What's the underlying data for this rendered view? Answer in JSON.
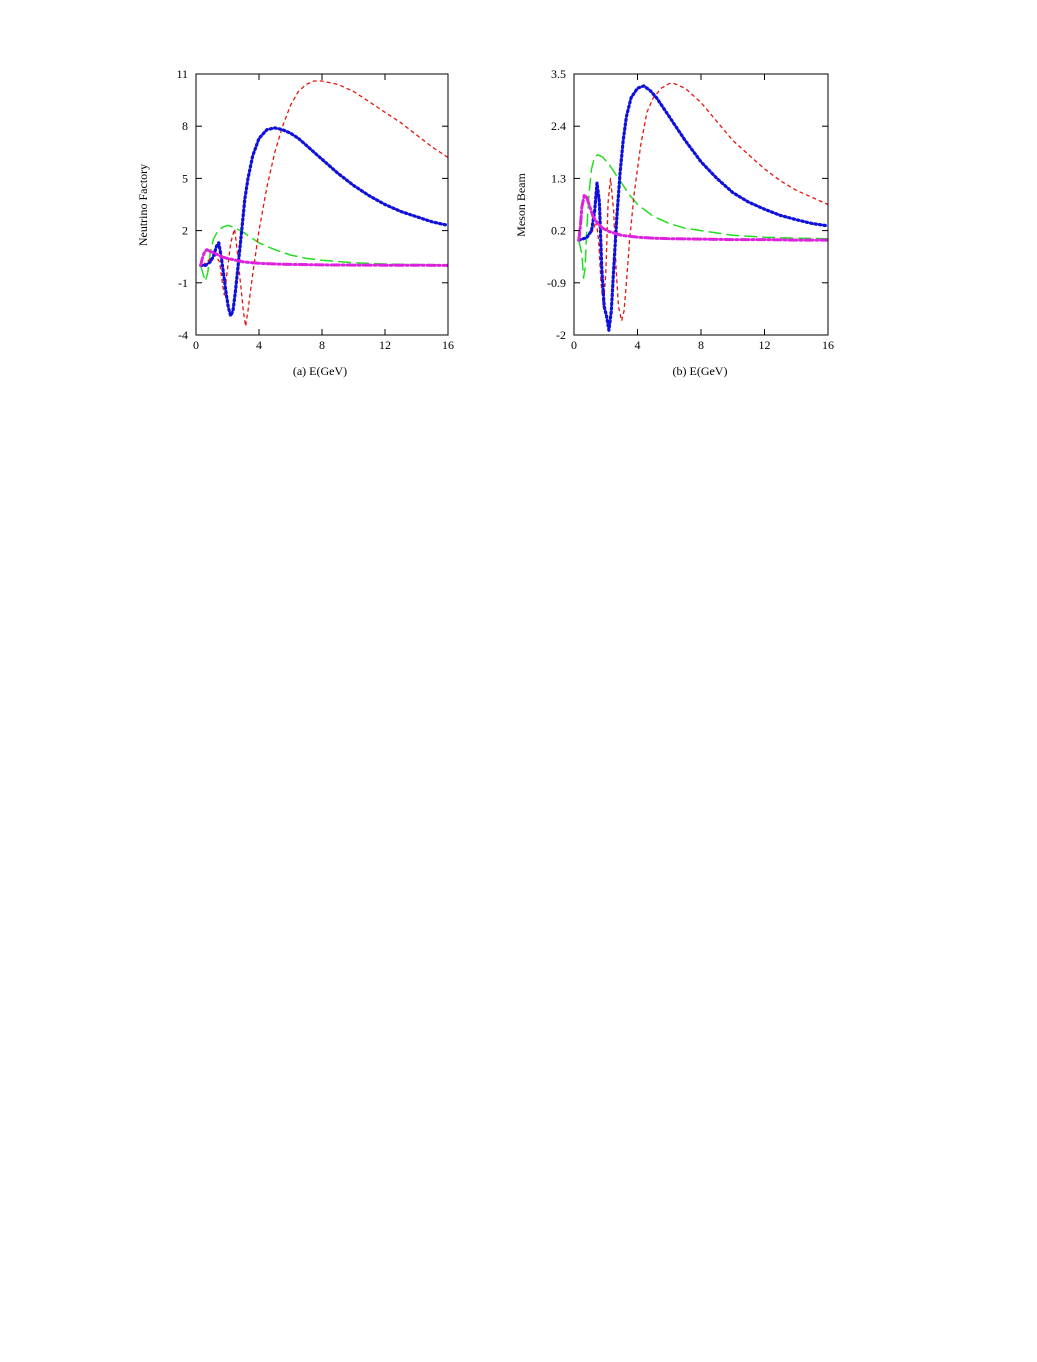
{
  "colors": {
    "red": "#e8140c",
    "blue": "#1010dd",
    "green": "#22dd22",
    "magenta": "#dd22dd",
    "axis": "#000000",
    "background": "#ffffff"
  },
  "chart_data": [
    {
      "type": "line",
      "caption": "(a)  E(GeV)",
      "xlabel": "",
      "ylabel": "Neutrino Factory",
      "xlim": [
        0,
        16
      ],
      "ylim": [
        -4,
        11
      ],
      "xticks": [
        "0",
        "4",
        "8",
        "12",
        "16"
      ],
      "xtick_values": [
        0,
        4,
        8,
        12,
        16
      ],
      "yticks": [
        "-4",
        "-1",
        "2",
        "5",
        "8",
        "11"
      ],
      "ytick_values": [
        -4,
        -1,
        2,
        5,
        8,
        11
      ],
      "grid": false,
      "legend": false,
      "series": [
        {
          "color": "red",
          "style": "short-dash",
          "x": [
            0.4,
            0.8,
            1.2,
            1.5,
            1.7,
            1.8,
            1.95,
            2.2,
            2.45,
            2.6,
            2.8,
            3.0,
            3.15,
            3.3,
            3.6,
            4.0,
            4.5,
            5.0,
            5.5,
            6.0,
            6.5,
            7.0,
            7.5,
            8.0,
            9.0,
            10.0,
            11.0,
            12.0,
            13.0,
            14.0,
            15.0,
            16.0
          ],
          "y": [
            0.0,
            0.3,
            0.6,
            0.2,
            -1.2,
            -1.7,
            -0.6,
            1.3,
            2.1,
            1.0,
            -0.8,
            -2.6,
            -3.5,
            -2.6,
            -0.5,
            2.0,
            4.5,
            6.5,
            8.0,
            9.2,
            10.0,
            10.4,
            10.6,
            10.6,
            10.4,
            10.0,
            9.4,
            8.8,
            8.2,
            7.5,
            6.8,
            6.2
          ]
        },
        {
          "color": "blue",
          "style": "dot",
          "x": [
            0.3,
            0.6,
            0.9,
            1.1,
            1.3,
            1.45,
            1.6,
            1.75,
            1.9,
            2.05,
            2.2,
            2.35,
            2.5,
            2.7,
            2.9,
            3.1,
            3.3,
            3.6,
            4.0,
            4.5,
            5.0,
            5.5,
            6.0,
            6.5,
            7.0,
            8.0,
            9.0,
            10.0,
            11.0,
            12.0,
            13.0,
            14.0,
            15.0,
            16.0
          ],
          "y": [
            0.0,
            0.0,
            0.2,
            0.5,
            1.1,
            1.3,
            0.5,
            -0.5,
            -1.5,
            -2.4,
            -2.9,
            -2.6,
            -1.5,
            0.2,
            2.0,
            3.8,
            5.0,
            6.3,
            7.3,
            7.8,
            7.9,
            7.8,
            7.6,
            7.3,
            6.9,
            6.1,
            5.3,
            4.6,
            4.0,
            3.5,
            3.1,
            2.8,
            2.5,
            2.3
          ]
        },
        {
          "color": "green",
          "style": "long-dash",
          "x": [
            0.3,
            0.45,
            0.6,
            0.75,
            0.9,
            1.1,
            1.4,
            1.7,
            2.0,
            2.4,
            3.0,
            3.5,
            4.0,
            5.0,
            6.0,
            7.0,
            8.0,
            10.0,
            12.0,
            14.0,
            16.0
          ],
          "y": [
            0.0,
            -0.5,
            -0.9,
            -0.4,
            0.7,
            1.5,
            2.0,
            2.2,
            2.3,
            2.2,
            1.9,
            1.6,
            1.3,
            0.9,
            0.6,
            0.4,
            0.3,
            0.15,
            0.08,
            0.05,
            0.03
          ]
        },
        {
          "color": "magenta",
          "style": "dash-dot",
          "x": [
            0.3,
            0.4,
            0.55,
            0.7,
            0.9,
            1.2,
            1.6,
            2.0,
            3.0,
            4.0,
            5.0,
            6.0,
            8.0,
            10.0,
            12.0,
            14.0,
            16.0
          ],
          "y": [
            0.0,
            0.4,
            0.8,
            0.9,
            0.8,
            0.7,
            0.5,
            0.4,
            0.2,
            0.12,
            0.08,
            0.06,
            0.03,
            0.02,
            0.01,
            0.01,
            0.0
          ]
        }
      ]
    },
    {
      "type": "line",
      "caption": "(b)  E(GeV)",
      "xlabel": "",
      "ylabel": "Meson Beam",
      "xlim": [
        0,
        16
      ],
      "ylim": [
        -2,
        3.5
      ],
      "xticks": [
        "0",
        "4",
        "8",
        "12",
        "16"
      ],
      "xtick_values": [
        0,
        4,
        8,
        12,
        16
      ],
      "yticks": [
        "-2",
        "-0.9",
        "0.2",
        "1.3",
        "2.4",
        "3.5"
      ],
      "ytick_values": [
        -2,
        -0.9,
        0.2,
        1.3,
        2.4,
        3.5
      ],
      "grid": false,
      "legend": false,
      "series": [
        {
          "color": "red",
          "style": "short-dash",
          "x": [
            0.3,
            0.8,
            1.2,
            1.4,
            1.55,
            1.7,
            1.85,
            2.0,
            2.15,
            2.3,
            2.5,
            2.65,
            2.8,
            3.0,
            3.15,
            3.3,
            3.5,
            3.8,
            4.2,
            4.6,
            5.0,
            5.5,
            6.0,
            6.3,
            7.0,
            8.0,
            9.0,
            10.0,
            11.0,
            12.0,
            13.0,
            14.0,
            15.0,
            16.0
          ],
          "y": [
            0.0,
            0.05,
            0.2,
            0.4,
            0.0,
            -0.9,
            -1.4,
            -0.7,
            0.8,
            1.3,
            0.6,
            -0.6,
            -1.4,
            -1.7,
            -1.5,
            -0.9,
            0.0,
            1.0,
            2.0,
            2.7,
            3.0,
            3.2,
            3.3,
            3.3,
            3.2,
            2.9,
            2.5,
            2.1,
            1.8,
            1.5,
            1.25,
            1.05,
            0.9,
            0.75
          ]
        },
        {
          "color": "blue",
          "style": "dot",
          "x": [
            0.3,
            0.8,
            1.1,
            1.3,
            1.45,
            1.6,
            1.75,
            1.9,
            2.05,
            2.2,
            2.35,
            2.5,
            2.7,
            2.9,
            3.1,
            3.3,
            3.6,
            4.0,
            4.4,
            4.8,
            5.2,
            5.6,
            6.0,
            7.0,
            8.0,
            9.0,
            10.0,
            11.0,
            12.0,
            13.0,
            14.0,
            15.0,
            16.0
          ],
          "y": [
            0.0,
            0.05,
            0.2,
            0.6,
            1.2,
            0.8,
            -0.6,
            -1.4,
            -1.6,
            -1.9,
            -1.5,
            -0.6,
            0.5,
            1.4,
            2.1,
            2.6,
            3.0,
            3.2,
            3.25,
            3.15,
            3.0,
            2.8,
            2.6,
            2.1,
            1.65,
            1.3,
            1.0,
            0.8,
            0.65,
            0.52,
            0.43,
            0.35,
            0.3
          ]
        },
        {
          "color": "green",
          "style": "long-dash",
          "x": [
            0.3,
            0.5,
            0.6,
            0.7,
            0.8,
            0.95,
            1.1,
            1.3,
            1.5,
            1.8,
            2.2,
            2.6,
            3.0,
            3.5,
            4.0,
            5.0,
            6.0,
            7.0,
            8.0,
            10.0,
            12.0,
            14.0,
            16.0
          ],
          "y": [
            0.0,
            -0.3,
            -0.8,
            -0.6,
            0.2,
            1.0,
            1.5,
            1.75,
            1.8,
            1.75,
            1.6,
            1.4,
            1.2,
            0.95,
            0.75,
            0.5,
            0.35,
            0.25,
            0.2,
            0.1,
            0.06,
            0.04,
            0.03
          ]
        },
        {
          "color": "magenta",
          "style": "dash-dot",
          "x": [
            0.3,
            0.4,
            0.5,
            0.65,
            0.8,
            1.0,
            1.2,
            1.5,
            1.8,
            2.2,
            3.0,
            4.0,
            5.0,
            6.0,
            8.0,
            10.0,
            12.0,
            14.0,
            16.0
          ],
          "y": [
            0.0,
            0.3,
            0.7,
            0.95,
            0.9,
            0.7,
            0.5,
            0.35,
            0.25,
            0.18,
            0.1,
            0.06,
            0.04,
            0.03,
            0.02,
            0.01,
            0.01,
            0.0,
            0.0
          ]
        }
      ]
    }
  ]
}
